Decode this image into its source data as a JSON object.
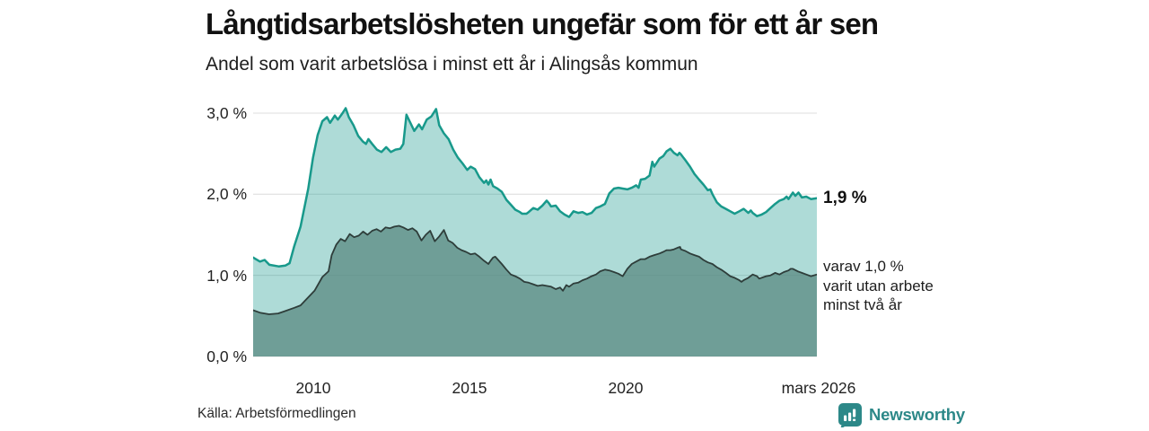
{
  "header": {
    "title": "Långtidsarbetslösheten ungefär som för ett år sen",
    "subtitle": "Andel som varit arbetslösa i minst ett år i Alingsås kommun"
  },
  "chart_data": {
    "type": "area",
    "title": "Långtidsarbetslösheten ungefär som för ett år sen",
    "subtitle": "Andel som varit arbetslösa i minst ett år i Alingsås kommun",
    "unit": "%",
    "grid": "horizontal",
    "legend_position": "right-annotations",
    "x_domain": [
      2008.08,
      2026.17
    ],
    "y_domain": [
      0,
      3.1766
    ],
    "y_ticks": [
      {
        "value": 0,
        "label": "0,0 %"
      },
      {
        "value": 1,
        "label": "1,0 %"
      },
      {
        "value": 2,
        "label": "2,0 %"
      },
      {
        "value": 3,
        "label": "3,0 %"
      }
    ],
    "x_ticks": [
      {
        "value": 2010,
        "label": "2010"
      },
      {
        "value": 2015,
        "label": "2015"
      },
      {
        "value": 2020,
        "label": "2020"
      },
      {
        "value": 2026.17,
        "label": "mars 2026"
      }
    ],
    "series": [
      {
        "name": "Andel arbetslösa minst ett år",
        "latest_label": "1,9 %",
        "line_color": "#18998b",
        "fill_color": "rgba(24,153,139,0.35)",
        "line_width": 2.5,
        "points": [
          [
            2008.08,
            1.22
          ],
          [
            2008.3,
            1.17
          ],
          [
            2008.45,
            1.19
          ],
          [
            2008.6,
            1.13
          ],
          [
            2008.9,
            1.11
          ],
          [
            2009.11,
            1.12
          ],
          [
            2009.25,
            1.15
          ],
          [
            2009.4,
            1.36
          ],
          [
            2009.6,
            1.6
          ],
          [
            2009.85,
            2.07
          ],
          [
            2010.0,
            2.45
          ],
          [
            2010.15,
            2.73
          ],
          [
            2010.3,
            2.9
          ],
          [
            2010.45,
            2.95
          ],
          [
            2010.55,
            2.88
          ],
          [
            2010.7,
            2.97
          ],
          [
            2010.8,
            2.92
          ],
          [
            2010.95,
            3.0
          ],
          [
            2011.05,
            3.06
          ],
          [
            2011.15,
            2.95
          ],
          [
            2011.3,
            2.85
          ],
          [
            2011.45,
            2.72
          ],
          [
            2011.6,
            2.65
          ],
          [
            2011.7,
            2.62
          ],
          [
            2011.78,
            2.68
          ],
          [
            2011.9,
            2.62
          ],
          [
            2012.05,
            2.55
          ],
          [
            2012.2,
            2.52
          ],
          [
            2012.35,
            2.58
          ],
          [
            2012.5,
            2.52
          ],
          [
            2012.65,
            2.55
          ],
          [
            2012.8,
            2.56
          ],
          [
            2012.9,
            2.62
          ],
          [
            2013.0,
            2.98
          ],
          [
            2013.1,
            2.9
          ],
          [
            2013.25,
            2.78
          ],
          [
            2013.4,
            2.86
          ],
          [
            2013.5,
            2.8
          ],
          [
            2013.65,
            2.92
          ],
          [
            2013.8,
            2.96
          ],
          [
            2013.95,
            3.05
          ],
          [
            2014.05,
            2.85
          ],
          [
            2014.2,
            2.75
          ],
          [
            2014.35,
            2.68
          ],
          [
            2014.5,
            2.55
          ],
          [
            2014.65,
            2.45
          ],
          [
            2014.8,
            2.38
          ],
          [
            2014.95,
            2.3
          ],
          [
            2015.06,
            2.34
          ],
          [
            2015.2,
            2.31
          ],
          [
            2015.34,
            2.21
          ],
          [
            2015.49,
            2.14
          ],
          [
            2015.56,
            2.17
          ],
          [
            2015.63,
            2.12
          ],
          [
            2015.7,
            2.18
          ],
          [
            2015.78,
            2.1
          ],
          [
            2015.92,
            2.07
          ],
          [
            2016.06,
            2.03
          ],
          [
            2016.21,
            1.93
          ],
          [
            2016.35,
            1.87
          ],
          [
            2016.49,
            1.81
          ],
          [
            2016.64,
            1.78
          ],
          [
            2016.71,
            1.76
          ],
          [
            2016.85,
            1.76
          ],
          [
            2016.92,
            1.78
          ],
          [
            2017.07,
            1.83
          ],
          [
            2017.21,
            1.81
          ],
          [
            2017.36,
            1.86
          ],
          [
            2017.5,
            1.92
          ],
          [
            2017.57,
            1.89
          ],
          [
            2017.64,
            1.85
          ],
          [
            2017.79,
            1.86
          ],
          [
            2017.93,
            1.79
          ],
          [
            2018.07,
            1.75
          ],
          [
            2018.22,
            1.72
          ],
          [
            2018.36,
            1.79
          ],
          [
            2018.51,
            1.77
          ],
          [
            2018.65,
            1.78
          ],
          [
            2018.79,
            1.75
          ],
          [
            2018.94,
            1.77
          ],
          [
            2019.08,
            1.83
          ],
          [
            2019.22,
            1.85
          ],
          [
            2019.37,
            1.88
          ],
          [
            2019.51,
            2.01
          ],
          [
            2019.66,
            2.07
          ],
          [
            2019.8,
            2.08
          ],
          [
            2019.94,
            2.07
          ],
          [
            2020.09,
            2.06
          ],
          [
            2020.23,
            2.08
          ],
          [
            2020.37,
            2.11
          ],
          [
            2020.45,
            2.08
          ],
          [
            2020.52,
            2.18
          ],
          [
            2020.66,
            2.19
          ],
          [
            2020.8,
            2.23
          ],
          [
            2020.89,
            2.4
          ],
          [
            2020.95,
            2.34
          ],
          [
            2021.12,
            2.44
          ],
          [
            2021.24,
            2.47
          ],
          [
            2021.35,
            2.53
          ],
          [
            2021.47,
            2.56
          ],
          [
            2021.58,
            2.51
          ],
          [
            2021.7,
            2.48
          ],
          [
            2021.76,
            2.51
          ],
          [
            2021.81,
            2.49
          ],
          [
            2021.95,
            2.42
          ],
          [
            2022.1,
            2.34
          ],
          [
            2022.24,
            2.25
          ],
          [
            2022.39,
            2.18
          ],
          [
            2022.53,
            2.12
          ],
          [
            2022.67,
            2.05
          ],
          [
            2022.75,
            2.06
          ],
          [
            2022.82,
            2.0
          ],
          [
            2022.96,
            1.9
          ],
          [
            2023.1,
            1.85
          ],
          [
            2023.25,
            1.82
          ],
          [
            2023.39,
            1.79
          ],
          [
            2023.53,
            1.76
          ],
          [
            2023.68,
            1.79
          ],
          [
            2023.82,
            1.82
          ],
          [
            2023.97,
            1.77
          ],
          [
            2024.05,
            1.8
          ],
          [
            2024.11,
            1.77
          ],
          [
            2024.25,
            1.73
          ],
          [
            2024.4,
            1.75
          ],
          [
            2024.54,
            1.78
          ],
          [
            2024.68,
            1.83
          ],
          [
            2024.83,
            1.88
          ],
          [
            2024.97,
            1.92
          ],
          [
            2025.11,
            1.94
          ],
          [
            2025.2,
            1.97
          ],
          [
            2025.26,
            1.94
          ],
          [
            2025.4,
            2.02
          ],
          [
            2025.48,
            1.98
          ],
          [
            2025.58,
            2.02
          ],
          [
            2025.69,
            1.96
          ],
          [
            2025.83,
            1.97
          ],
          [
            2025.98,
            1.94
          ],
          [
            2026.17,
            1.95
          ]
        ]
      },
      {
        "name": "Varav utan arbete minst två år",
        "latest_label": "varav 1,0 %",
        "line_color": "#2e3d3a",
        "fill_color": "rgba(89,138,129,0.75)",
        "line_width": 1.8,
        "points": [
          [
            2008.08,
            0.57
          ],
          [
            2008.3,
            0.54
          ],
          [
            2008.59,
            0.52
          ],
          [
            2008.88,
            0.53
          ],
          [
            2009.11,
            0.56
          ],
          [
            2009.4,
            0.6
          ],
          [
            2009.6,
            0.63
          ],
          [
            2009.8,
            0.71
          ],
          [
            2010.05,
            0.81
          ],
          [
            2010.3,
            0.98
          ],
          [
            2010.5,
            1.05
          ],
          [
            2010.6,
            1.25
          ],
          [
            2010.75,
            1.38
          ],
          [
            2010.89,
            1.45
          ],
          [
            2011.03,
            1.42
          ],
          [
            2011.18,
            1.51
          ],
          [
            2011.32,
            1.47
          ],
          [
            2011.47,
            1.49
          ],
          [
            2011.61,
            1.54
          ],
          [
            2011.75,
            1.5
          ],
          [
            2011.9,
            1.55
          ],
          [
            2012.04,
            1.57
          ],
          [
            2012.18,
            1.54
          ],
          [
            2012.33,
            1.59
          ],
          [
            2012.47,
            1.58
          ],
          [
            2012.61,
            1.6
          ],
          [
            2012.76,
            1.61
          ],
          [
            2012.9,
            1.59
          ],
          [
            2013.05,
            1.56
          ],
          [
            2013.19,
            1.58
          ],
          [
            2013.33,
            1.54
          ],
          [
            2013.48,
            1.43
          ],
          [
            2013.62,
            1.5
          ],
          [
            2013.76,
            1.55
          ],
          [
            2013.91,
            1.42
          ],
          [
            2014.05,
            1.48
          ],
          [
            2014.2,
            1.56
          ],
          [
            2014.34,
            1.43
          ],
          [
            2014.48,
            1.4
          ],
          [
            2014.63,
            1.34
          ],
          [
            2014.77,
            1.31
          ],
          [
            2014.91,
            1.29
          ],
          [
            2015.06,
            1.26
          ],
          [
            2015.2,
            1.27
          ],
          [
            2015.34,
            1.23
          ],
          [
            2015.49,
            1.18
          ],
          [
            2015.63,
            1.14
          ],
          [
            2015.7,
            1.18
          ],
          [
            2015.78,
            1.22
          ],
          [
            2015.85,
            1.23
          ],
          [
            2015.92,
            1.2
          ],
          [
            2016.06,
            1.14
          ],
          [
            2016.21,
            1.07
          ],
          [
            2016.35,
            1.01
          ],
          [
            2016.49,
            0.99
          ],
          [
            2016.64,
            0.96
          ],
          [
            2016.78,
            0.92
          ],
          [
            2016.92,
            0.91
          ],
          [
            2017.07,
            0.89
          ],
          [
            2017.21,
            0.87
          ],
          [
            2017.36,
            0.88
          ],
          [
            2017.5,
            0.87
          ],
          [
            2017.64,
            0.86
          ],
          [
            2017.79,
            0.83
          ],
          [
            2017.93,
            0.85
          ],
          [
            2018.02,
            0.81
          ],
          [
            2018.13,
            0.88
          ],
          [
            2018.22,
            0.86
          ],
          [
            2018.36,
            0.9
          ],
          [
            2018.51,
            0.91
          ],
          [
            2018.65,
            0.94
          ],
          [
            2018.79,
            0.96
          ],
          [
            2018.94,
            0.99
          ],
          [
            2019.08,
            1.01
          ],
          [
            2019.22,
            1.05
          ],
          [
            2019.37,
            1.07
          ],
          [
            2019.51,
            1.06
          ],
          [
            2019.66,
            1.04
          ],
          [
            2019.8,
            1.02
          ],
          [
            2019.94,
            0.99
          ],
          [
            2020.09,
            1.08
          ],
          [
            2020.23,
            1.14
          ],
          [
            2020.37,
            1.17
          ],
          [
            2020.52,
            1.2
          ],
          [
            2020.66,
            1.2
          ],
          [
            2020.8,
            1.23
          ],
          [
            2020.95,
            1.25
          ],
          [
            2021.12,
            1.27
          ],
          [
            2021.24,
            1.29
          ],
          [
            2021.35,
            1.31
          ],
          [
            2021.47,
            1.31
          ],
          [
            2021.58,
            1.32
          ],
          [
            2021.7,
            1.34
          ],
          [
            2021.78,
            1.35
          ],
          [
            2021.81,
            1.32
          ],
          [
            2021.95,
            1.3
          ],
          [
            2022.1,
            1.27
          ],
          [
            2022.24,
            1.25
          ],
          [
            2022.39,
            1.23
          ],
          [
            2022.53,
            1.19
          ],
          [
            2022.67,
            1.16
          ],
          [
            2022.82,
            1.14
          ],
          [
            2022.96,
            1.1
          ],
          [
            2023.1,
            1.07
          ],
          [
            2023.25,
            1.03
          ],
          [
            2023.39,
            0.99
          ],
          [
            2023.53,
            0.97
          ],
          [
            2023.68,
            0.94
          ],
          [
            2023.75,
            0.92
          ],
          [
            2023.82,
            0.94
          ],
          [
            2023.97,
            0.97
          ],
          [
            2024.11,
            1.01
          ],
          [
            2024.25,
            0.99
          ],
          [
            2024.32,
            0.96
          ],
          [
            2024.54,
            0.99
          ],
          [
            2024.68,
            1.0
          ],
          [
            2024.83,
            1.03
          ],
          [
            2024.97,
            1.01
          ],
          [
            2025.11,
            1.04
          ],
          [
            2025.26,
            1.06
          ],
          [
            2025.33,
            1.08
          ],
          [
            2025.4,
            1.08
          ],
          [
            2025.55,
            1.05
          ],
          [
            2025.69,
            1.03
          ],
          [
            2025.83,
            1.01
          ],
          [
            2025.98,
            0.99
          ],
          [
            2026.17,
            1.01
          ]
        ]
      }
    ],
    "colors": {
      "gridline": "#dcdcdc",
      "axis_text": "#222222",
      "title_text": "#111111"
    }
  },
  "annotations": {
    "latest_total": "1,9 %",
    "varav_line1": "varav 1,0 %",
    "varav_line2": "varit utan arbete",
    "varav_line3": "minst två år"
  },
  "footer": {
    "source": "Källa: Arbetsförmedlingen",
    "brand": "Newsworthy",
    "brand_color": "#2c8888"
  }
}
